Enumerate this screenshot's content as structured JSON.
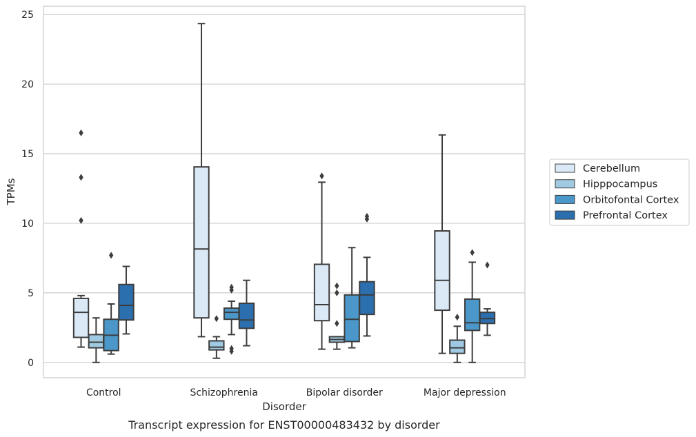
{
  "chart_data": {
    "type": "boxplot",
    "caption": "Transcript expression for ENST00000483432 by disorder",
    "xlabel": "Disorder",
    "ylabel": "TPMs",
    "ylim": [
      -1.1,
      25.6
    ],
    "yticks": [
      0,
      5,
      10,
      15,
      20,
      25
    ],
    "grid": true,
    "legend_position": "right",
    "categories": [
      "Control",
      "Schizophrenia",
      "Bipolar disorder",
      "Major depression"
    ],
    "series": [
      {
        "name": "Cerebellum",
        "color": "#dbe9f6",
        "boxes": [
          {
            "whislo": 1.1,
            "q1": 1.8,
            "med": 3.6,
            "q3": 4.6,
            "whishi": 4.8,
            "fliers": [
              10.2,
              13.3,
              16.5
            ]
          },
          {
            "whislo": 1.85,
            "q1": 3.2,
            "med": 8.15,
            "q3": 14.05,
            "whishi": 24.35,
            "fliers": []
          },
          {
            "whislo": 0.95,
            "q1": 3.0,
            "med": 4.15,
            "q3": 7.05,
            "whishi": 12.95,
            "fliers": [
              13.4
            ]
          },
          {
            "whislo": 0.65,
            "q1": 3.75,
            "med": 5.9,
            "q3": 9.45,
            "whishi": 16.35,
            "fliers": []
          }
        ]
      },
      {
        "name": "Hipppocampus",
        "color": "#a0cae1",
        "boxes": [
          {
            "whislo": 0.0,
            "q1": 1.05,
            "med": 1.45,
            "q3": 2.0,
            "whishi": 3.2,
            "fliers": []
          },
          {
            "whislo": 0.3,
            "q1": 0.9,
            "med": 1.1,
            "q3": 1.55,
            "whishi": 1.85,
            "fliers": [
              3.15
            ]
          },
          {
            "whislo": 0.95,
            "q1": 1.45,
            "med": 1.65,
            "q3": 1.85,
            "whishi": 1.85,
            "fliers": [
              2.8,
              5.0,
              5.5
            ]
          },
          {
            "whislo": 0.0,
            "q1": 0.65,
            "med": 1.05,
            "q3": 1.6,
            "whishi": 2.6,
            "fliers": [
              3.25
            ]
          }
        ]
      },
      {
        "name": "Orbitofontal Cortex",
        "color": "#4b97c9",
        "boxes": [
          {
            "whislo": 0.6,
            "q1": 0.85,
            "med": 1.95,
            "q3": 3.1,
            "whishi": 4.2,
            "fliers": [
              7.7
            ]
          },
          {
            "whislo": 2.0,
            "q1": 3.1,
            "med": 3.6,
            "q3": 3.9,
            "whishi": 4.4,
            "fliers": [
              0.8,
              1.0,
              5.2,
              5.4
            ]
          },
          {
            "whislo": 1.05,
            "q1": 1.5,
            "med": 3.1,
            "q3": 4.85,
            "whishi": 8.25,
            "fliers": []
          },
          {
            "whislo": 0.0,
            "q1": 2.3,
            "med": 2.85,
            "q3": 4.55,
            "whishi": 7.2,
            "fliers": [
              7.9
            ]
          }
        ]
      },
      {
        "name": "Prefrontal Cortex",
        "color": "#2b6fae",
        "boxes": [
          {
            "whislo": 2.05,
            "q1": 3.05,
            "med": 4.1,
            "q3": 5.6,
            "whishi": 6.9,
            "fliers": []
          },
          {
            "whislo": 1.2,
            "q1": 2.45,
            "med": 3.05,
            "q3": 4.25,
            "whishi": 5.9,
            "fliers": []
          },
          {
            "whislo": 1.9,
            "q1": 3.45,
            "med": 4.85,
            "q3": 5.8,
            "whishi": 7.55,
            "fliers": [
              10.3,
              10.5
            ]
          },
          {
            "whislo": 1.95,
            "q1": 2.8,
            "med": 3.15,
            "q3": 3.6,
            "whishi": 3.85,
            "fliers": [
              7.0
            ]
          }
        ]
      }
    ]
  }
}
